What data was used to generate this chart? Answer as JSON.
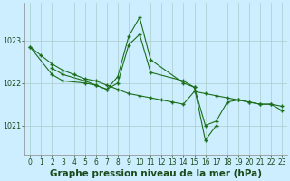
{
  "title": "Graphe pression niveau de la mer (hPa)",
  "bg_color": "#cceeff",
  "grid_color": "#aacccc",
  "line_color": "#1a6e1a",
  "x_values": [
    0,
    1,
    2,
    3,
    4,
    5,
    6,
    7,
    8,
    9,
    10,
    11,
    12,
    13,
    14,
    15,
    16,
    17,
    18,
    19,
    20,
    21,
    22,
    23
  ],
  "line_A": [
    1022.85,
    1022.65,
    1022.45,
    1022.3,
    1022.2,
    1022.1,
    1022.05,
    1021.95,
    1021.85,
    1021.75,
    1021.7,
    1021.65,
    1021.6,
    1021.55,
    1021.5,
    1021.8,
    1021.75,
    1021.7,
    1021.65,
    1021.6,
    1021.55,
    1021.5,
    1021.5,
    1021.45
  ],
  "line_B_x": [
    0,
    2,
    3,
    5,
    6,
    7,
    8,
    9,
    10,
    11,
    14,
    15,
    16,
    17,
    18,
    19,
    20,
    21,
    22,
    23
  ],
  "line_B_y": [
    1022.85,
    1022.2,
    1022.05,
    1022.0,
    1021.95,
    1021.85,
    1022.0,
    1022.9,
    1023.15,
    1022.25,
    1022.05,
    1021.9,
    1021.0,
    1021.1,
    1021.55,
    1021.6,
    1021.55,
    1021.5,
    1021.5,
    1021.35
  ],
  "line_C_x": [
    2,
    3,
    5,
    6,
    7,
    8,
    9,
    10,
    11,
    14,
    15,
    16,
    17
  ],
  "line_C_y": [
    1022.35,
    1022.2,
    1022.05,
    1021.95,
    1021.85,
    1022.15,
    1023.1,
    1023.55,
    1022.55,
    1022.0,
    1021.9,
    1020.65,
    1021.0
  ],
  "ylim": [
    1020.3,
    1023.9
  ],
  "ytick_vals": [
    1021,
    1022,
    1023
  ],
  "xlim": [
    -0.5,
    23.5
  ],
  "title_fontsize": 7.5,
  "tick_fontsize": 5.8
}
